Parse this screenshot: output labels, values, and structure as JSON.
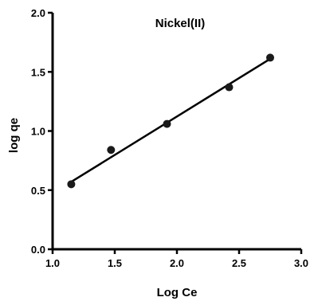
{
  "chart_data": {
    "type": "scatter",
    "title": "Nickel(II)",
    "xlabel": "Log Ce",
    "ylabel": "log qe",
    "xlim": [
      1.0,
      3.0
    ],
    "ylim": [
      0.0,
      2.0
    ],
    "xticks": [
      "1.0",
      "1.5",
      "2.0",
      "2.5",
      "3.0"
    ],
    "yticks": [
      "0.0",
      "0.5",
      "1.0",
      "1.5",
      "2.0"
    ],
    "series": [
      {
        "x": [
          1.15,
          1.47,
          1.92,
          2.42,
          2.75
        ],
        "y": [
          0.55,
          0.84,
          1.06,
          1.37,
          1.62
        ],
        "marker_color": "#1a1a1a"
      }
    ],
    "fit_line": {
      "x": [
        1.15,
        2.75
      ],
      "y": [
        0.57,
        1.61
      ],
      "color": "#000000"
    },
    "grid": false,
    "legend": "none"
  }
}
